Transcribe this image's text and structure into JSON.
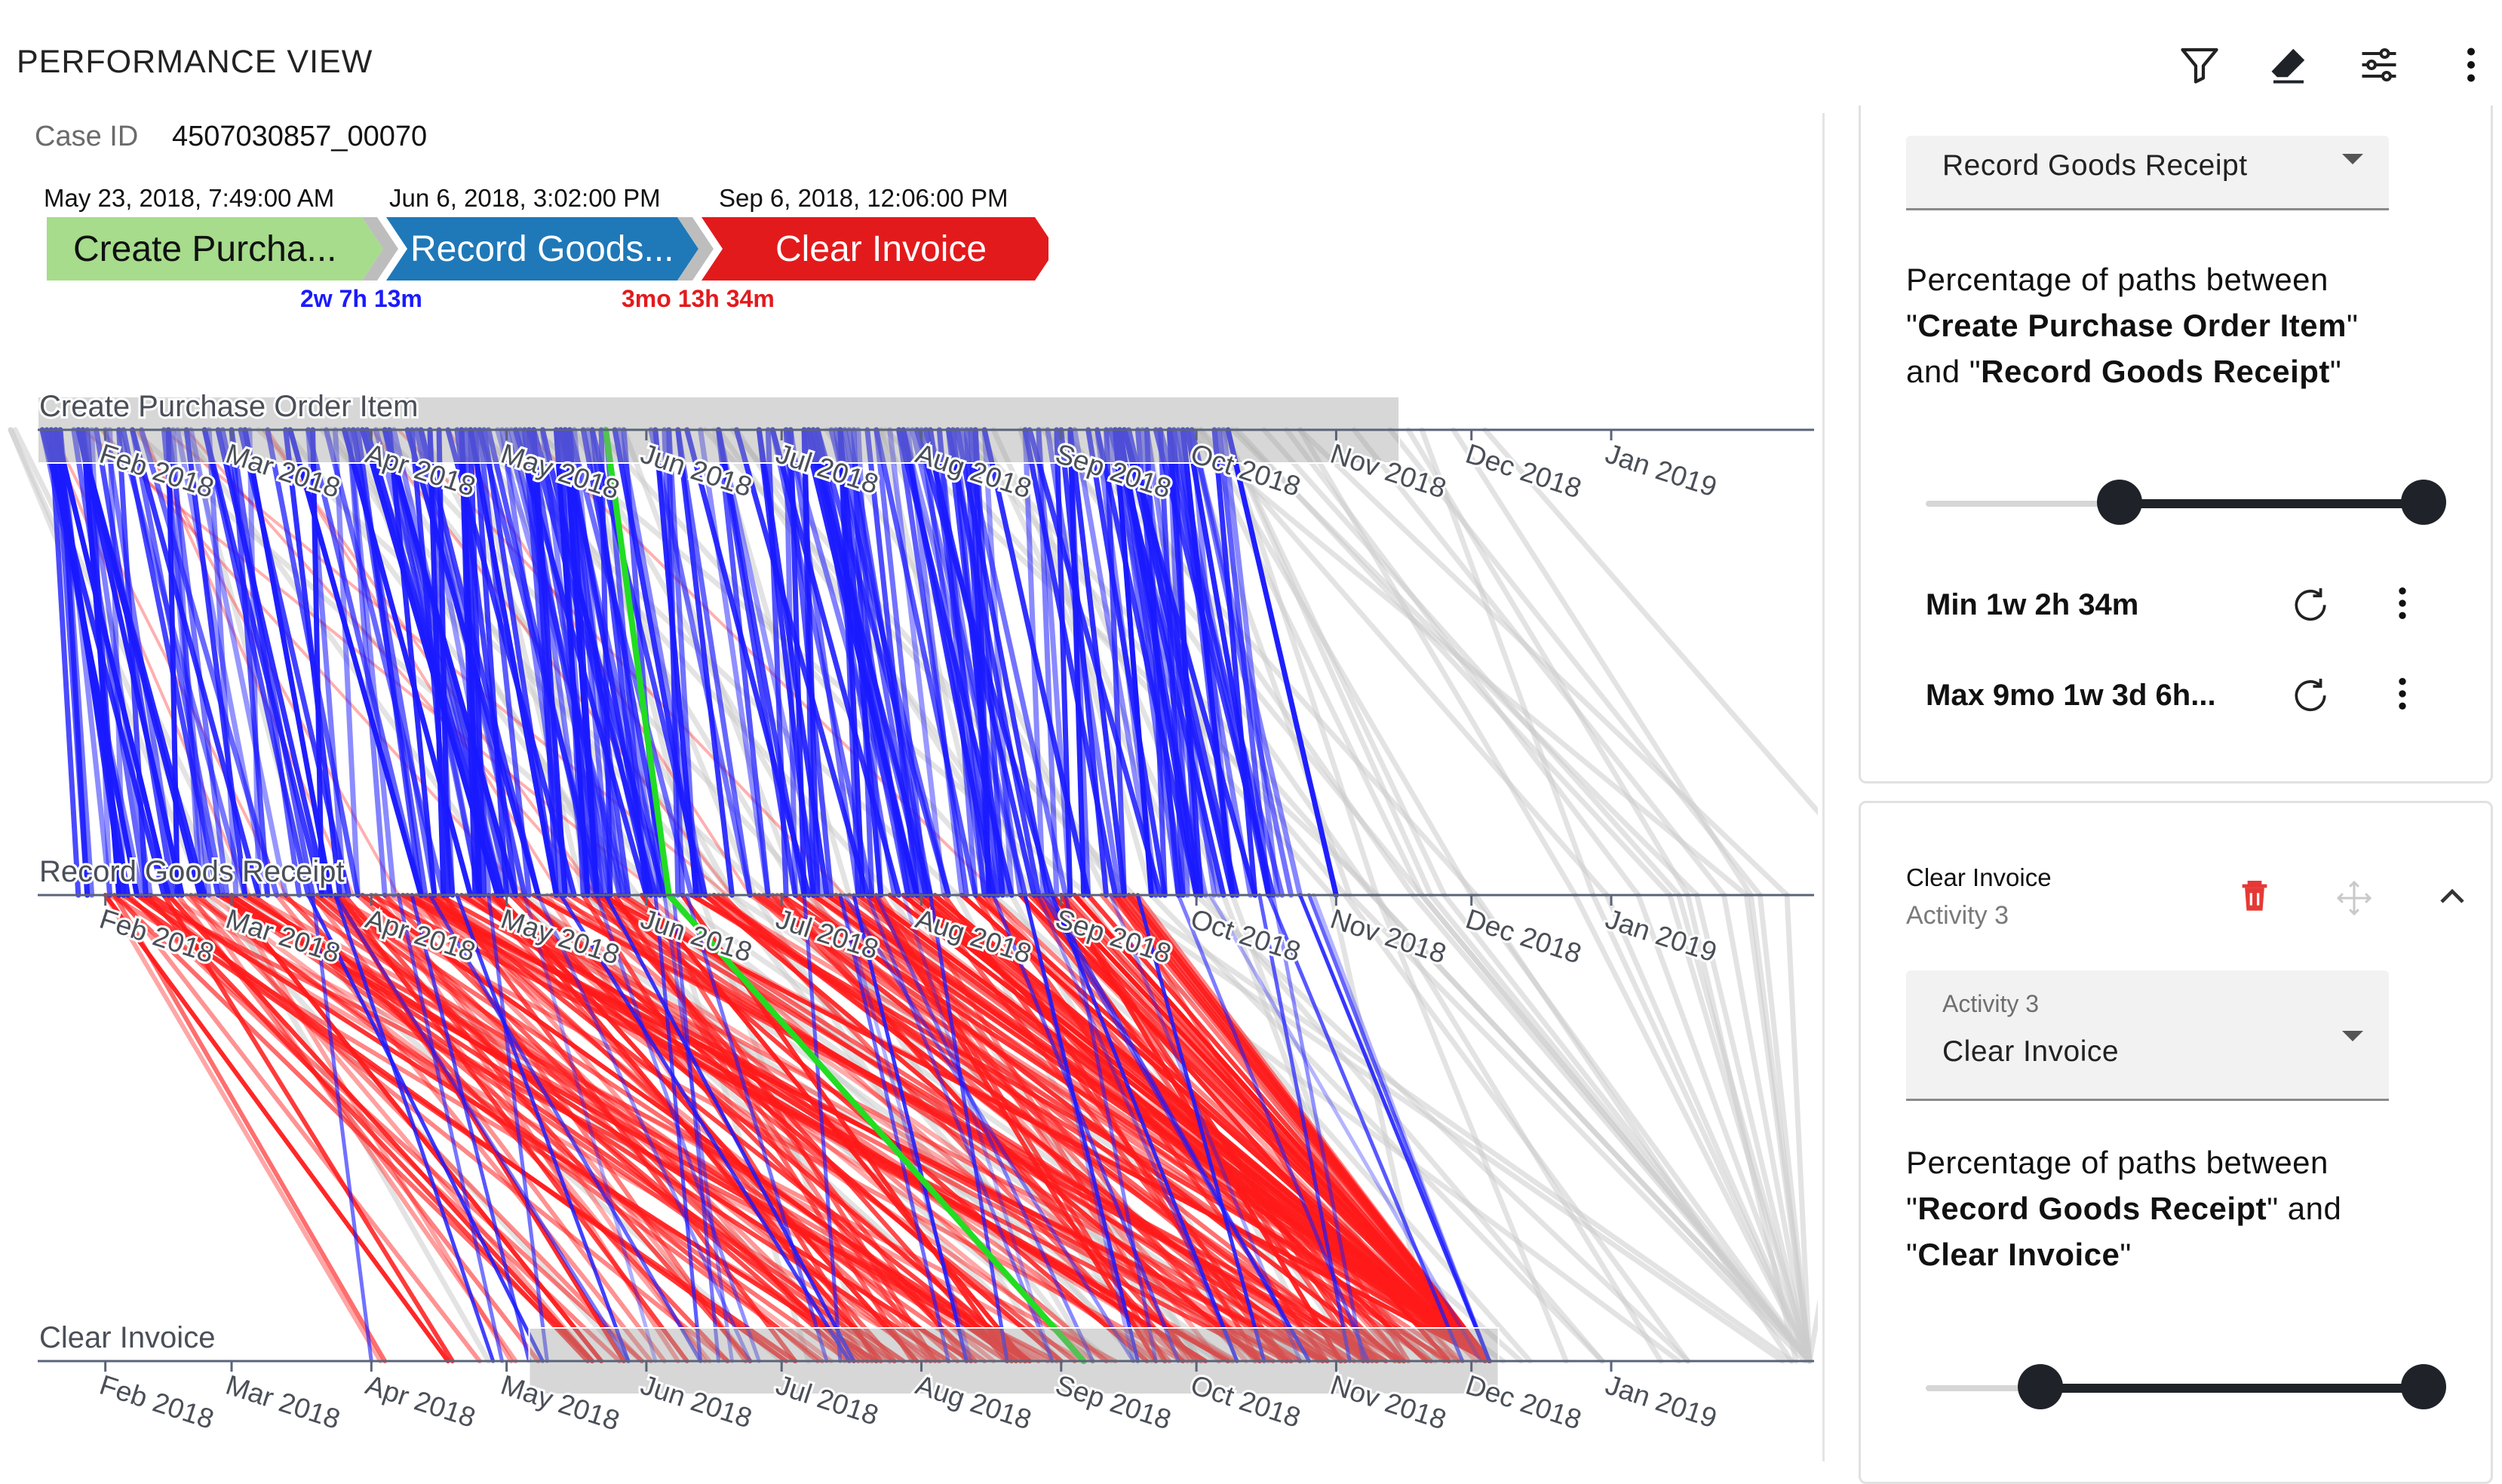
{
  "header": {
    "title": "PERFORMANCE VIEW"
  },
  "toolbar": {
    "icons": [
      "filter-icon",
      "eraser-icon",
      "tune-icon",
      "more-vert-icon"
    ]
  },
  "case": {
    "label": "Case ID",
    "value": "4507030857_00070"
  },
  "trace": {
    "steps": [
      {
        "date": "May 23, 2018, 7:49:00 AM",
        "label": "Create Purcha...",
        "color": "#a6dc8c"
      },
      {
        "date": "Jun 6, 2018, 3:02:00 PM",
        "label": "Record Goods...",
        "color": "#1f78b8"
      },
      {
        "date": "Sep 6, 2018, 12:06:00 PM",
        "label": "Clear Invoice",
        "color": "#e31a1c"
      }
    ],
    "durations": [
      {
        "text": "2w 7h 13m",
        "color": "#1a1aff"
      },
      {
        "text": "3mo 13h 34m",
        "color": "#e31a1c"
      }
    ]
  },
  "chart_data": {
    "type": "line",
    "axes": [
      {
        "name": "Create Purchase Order Item"
      },
      {
        "name": "Record Goods Receipt"
      },
      {
        "name": "Clear Invoice"
      }
    ],
    "tick_labels": [
      "Feb 2018",
      "Mar 2018",
      "Apr 2018",
      "May 2018",
      "Jun 2018",
      "Jul 2018",
      "Aug 2018",
      "Sep 2018",
      "Oct 2018",
      "Nov 2018",
      "Dec 2018",
      "Jan 2019"
    ],
    "x_range": [
      "2018-01-17",
      "2019-02-15"
    ],
    "series": [
      {
        "color": "#1a1aff",
        "segment": 1
      },
      {
        "color": "#ff1a1a",
        "segment": 2
      },
      {
        "color": "#cccccc",
        "segment": 0
      },
      {
        "color": "#22dd22",
        "segment": 3
      }
    ],
    "highlighted_case": [
      "2018-05-23",
      "2018-06-06",
      "2018-09-06"
    ],
    "selection_brush": [
      {
        "axis": "Create Purchase Order Item",
        "from": "2018-01-17",
        "to": "2018-11-15"
      },
      {
        "axis": "Clear Invoice",
        "from": "2018-05-06",
        "to": "2018-12-07"
      }
    ],
    "grid": false
  },
  "panel": {
    "first_select_value": "Record Goods Receipt",
    "pct1": {
      "prefix": "Percentage of paths between",
      "a": "Create Purchase Order Item",
      "mid": "and",
      "b": "Record Goods Receipt"
    },
    "min_label": "Min 1w 2h 34m",
    "max_label": "Max 9mo 1w 3d 6h...",
    "slider1": {
      "low": 0.39,
      "high": 1.0
    },
    "card2": {
      "title": "Clear Invoice",
      "subtitle": "Activity 3",
      "select_label": "Activity 3",
      "select_value": "Clear Invoice"
    },
    "pct2": {
      "prefix": "Percentage of paths between",
      "a": "Record Goods Receipt",
      "mid": "and",
      "b": "Clear Invoice"
    },
    "slider2": {
      "low": 0.23,
      "high": 1.0
    }
  }
}
